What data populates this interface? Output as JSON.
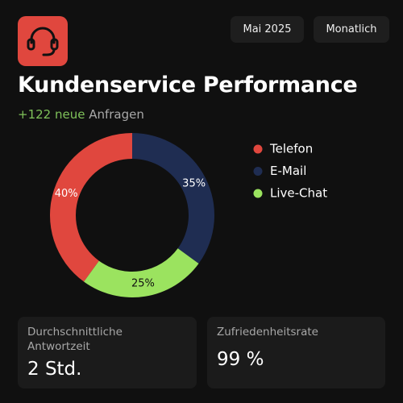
{
  "header": {
    "period": "Mai 2025",
    "interval": "Monatlich",
    "title": "Kundenservice Performance",
    "subtitle_highlight": "+122 neue",
    "subtitle_rest": "Anfragen"
  },
  "chart_data": {
    "type": "pie",
    "categories": [
      "Telefon",
      "E-Mail",
      "Live-Chat"
    ],
    "values": [
      40,
      35,
      25
    ],
    "value_labels": [
      "40%",
      "35%",
      "25%"
    ],
    "colors": [
      "#e0473e",
      "#1f2d52",
      "#9be35f"
    ]
  },
  "stats": [
    {
      "label": "Durchschnittliche Antwortzeit",
      "value": "2 Std."
    },
    {
      "label": "Zufriedenheitsrate",
      "value": "99 %"
    }
  ]
}
